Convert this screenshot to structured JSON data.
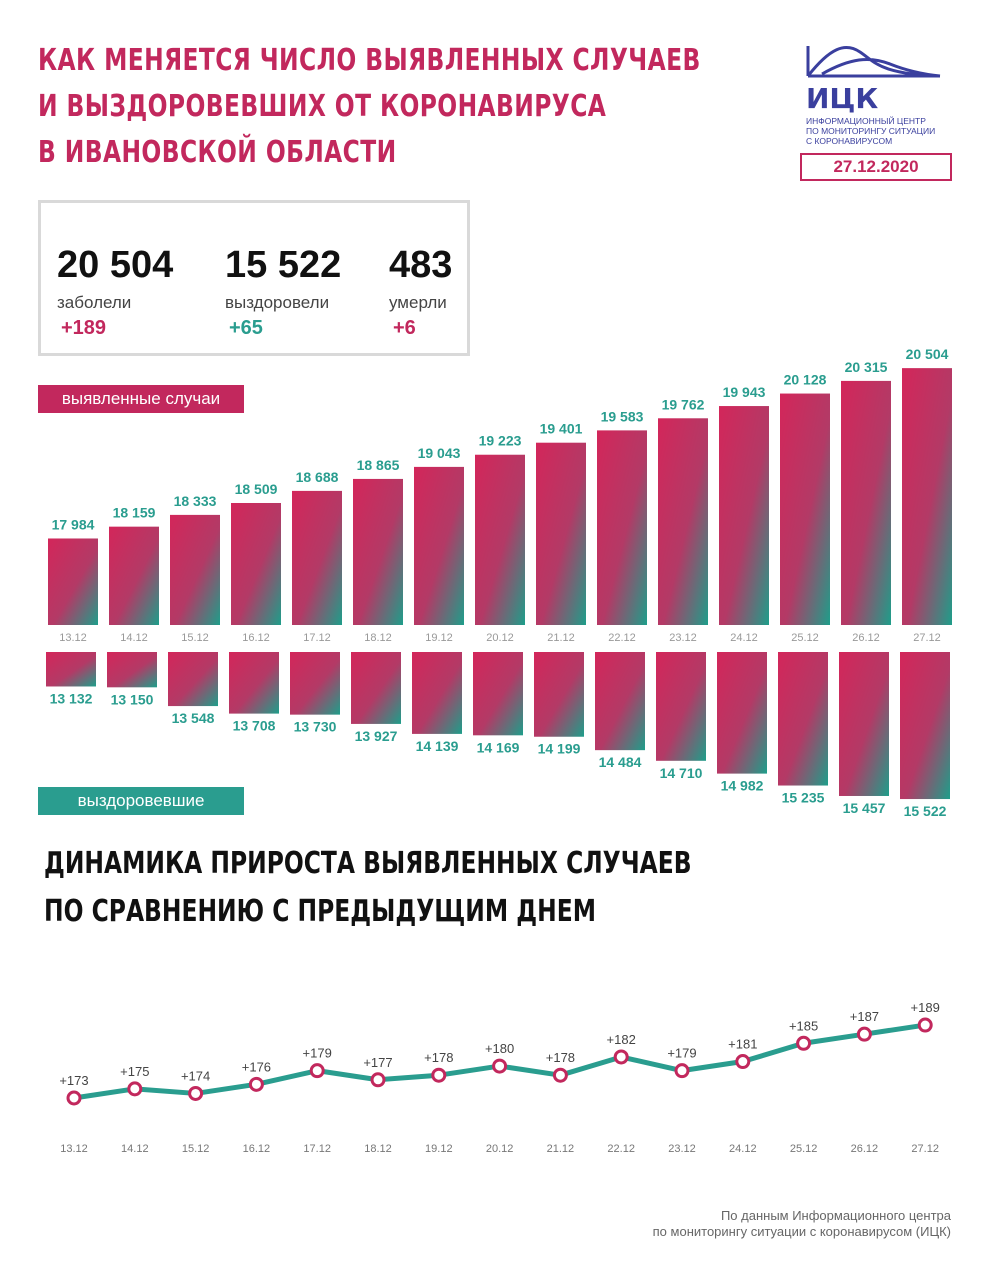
{
  "header": {
    "title_lines": [
      "КАК МЕНЯЕТСЯ ЧИСЛО ВЫЯВЛЕННЫХ СЛУЧАЕВ",
      "И ВЫЗДОРОВЕВШИХ ОТ КОРОНАВИРУСА",
      "В ИВАНОВСКОЙ ОБЛАСТИ"
    ],
    "logo_text": "ИЦК",
    "logo_sub_lines": [
      "ИНФОРМАЦИОННЫЙ ЦЕНТР",
      "ПО МОНИТОРИНГУ СИТУАЦИИ",
      "С КОРОНАВИРУСОМ"
    ],
    "date": "27.12.2020"
  },
  "stats": [
    {
      "number": "20 504",
      "label": "заболели",
      "delta": "+189",
      "color": "#c2285d"
    },
    {
      "number": "15 522",
      "label": "выздоровели",
      "delta": "+65",
      "color": "#2a9d8f"
    },
    {
      "number": "483",
      "label": "умерли",
      "delta": "+6",
      "color": "#c2285d"
    }
  ],
  "legend": {
    "cases": "выявленные случаи",
    "recovered": "выздоровевшие"
  },
  "section_title_lines": [
    "ДИНАМИКА ПРИРОСТА ВЫЯВЛЕННЫХ СЛУЧАЕВ",
    "ПО СРАВНЕНИЮ С ПРЕДЫДУЩИМ ДНЕМ"
  ],
  "footnote_lines": [
    "По данным Информационного центра",
    "по мониторингу ситуации с коронавирусом (ИЦК)"
  ],
  "colors": {
    "pink": "#c2285d",
    "teal": "#2a9d8f",
    "navy": "#3a3f9e"
  },
  "chart_data": [
    {
      "type": "bar",
      "categories": [
        "13.12",
        "14.12",
        "15.12",
        "16.12",
        "17.12",
        "18.12",
        "19.12",
        "20.12",
        "21.12",
        "22.12",
        "23.12",
        "24.12",
        "25.12",
        "26.12",
        "27.12"
      ],
      "series": [
        {
          "name": "выявленные случаи",
          "values": [
            17984,
            18159,
            18333,
            18509,
            18688,
            18865,
            19043,
            19223,
            19401,
            19583,
            19762,
            19943,
            20128,
            20315,
            20504
          ],
          "labels": [
            "17 984",
            "18 159",
            "18 333",
            "18 509",
            "18 688",
            "18 865",
            "19 043",
            "19 223",
            "19 401",
            "19 583",
            "19 762",
            "19 943",
            "20 128",
            "20 315",
            "20 504"
          ]
        },
        {
          "name": "выздоровевшие",
          "values": [
            13132,
            13150,
            13548,
            13708,
            13730,
            13927,
            14139,
            14169,
            14199,
            14484,
            14710,
            14982,
            15235,
            15457,
            15522
          ],
          "labels": [
            "13 132",
            "13 150",
            "13 548",
            "13 708",
            "13 730",
            "13 927",
            "14 139",
            "14 169",
            "14 199",
            "14 484",
            "14 710",
            "14 982",
            "15 235",
            "15 457",
            "15 522"
          ]
        }
      ]
    },
    {
      "type": "line",
      "categories": [
        "13.12",
        "14.12",
        "15.12",
        "16.12",
        "17.12",
        "18.12",
        "19.12",
        "20.12",
        "21.12",
        "22.12",
        "23.12",
        "24.12",
        "25.12",
        "26.12",
        "27.12"
      ],
      "values": [
        173,
        175,
        174,
        176,
        179,
        177,
        178,
        180,
        178,
        182,
        179,
        181,
        185,
        187,
        189
      ],
      "labels": [
        "+173",
        "+175",
        "+174",
        "+176",
        "+179",
        "+177",
        "+178",
        "+180",
        "+178",
        "+182",
        "+179",
        "+181",
        "+185",
        "+187",
        "+189"
      ]
    }
  ]
}
